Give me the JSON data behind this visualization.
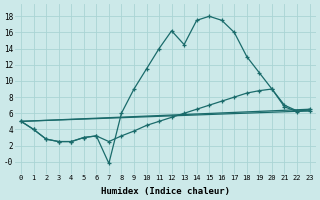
{
  "xlabel": "Humidex (Indice chaleur)",
  "bg_color": "#cce9e9",
  "grid_color": "#aad4d4",
  "line_color": "#1a6b6b",
  "xlim": [
    -0.5,
    23.5
  ],
  "ylim": [
    -1.5,
    19.5
  ],
  "xticks": [
    0,
    1,
    2,
    3,
    4,
    5,
    6,
    7,
    8,
    9,
    10,
    11,
    12,
    13,
    14,
    15,
    16,
    17,
    18,
    19,
    20,
    21,
    22,
    23
  ],
  "yticks": [
    0,
    2,
    4,
    6,
    8,
    10,
    12,
    14,
    16,
    18
  ],
  "ytick_labels": [
    "-0",
    "2",
    "4",
    "6",
    "8",
    "10",
    "12",
    "14",
    "16",
    "18"
  ],
  "curve1_x": [
    0,
    1,
    2,
    3,
    4,
    5,
    6,
    7,
    8,
    9,
    10,
    11,
    12,
    13,
    14,
    15,
    16,
    17,
    18,
    19,
    20,
    21,
    22,
    23
  ],
  "curve1_y": [
    5.0,
    4.0,
    2.8,
    2.5,
    2.5,
    3.0,
    3.2,
    -0.2,
    6.0,
    9.0,
    11.5,
    14.0,
    16.2,
    14.5,
    17.5,
    18.0,
    17.5,
    16.0,
    13.0,
    11.0,
    9.0,
    7.0,
    6.3,
    6.3
  ],
  "curve2_x": [
    0,
    1,
    2,
    3,
    4,
    5,
    6,
    7,
    8,
    9,
    10,
    11,
    12,
    13,
    14,
    15,
    16,
    17,
    18,
    19,
    20,
    21,
    22,
    23
  ],
  "curve2_y": [
    5.0,
    4.0,
    2.8,
    2.5,
    2.5,
    3.0,
    3.2,
    2.5,
    3.2,
    3.8,
    4.5,
    5.0,
    5.5,
    6.0,
    6.5,
    7.0,
    7.5,
    8.0,
    8.5,
    8.8,
    9.0,
    6.8,
    6.2,
    6.5
  ],
  "curve3_x": [
    0,
    23
  ],
  "curve3_y": [
    5.0,
    6.5
  ],
  "curve4_x": [
    0,
    23
  ],
  "curve4_y": [
    5.0,
    6.5
  ]
}
